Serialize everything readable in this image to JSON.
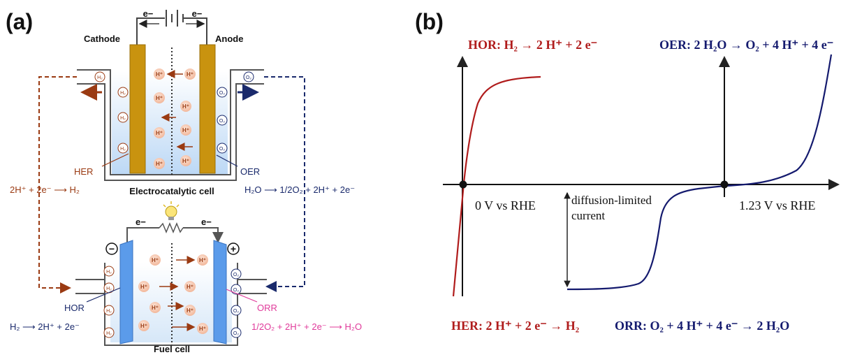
{
  "panel_a": {
    "label": "(a)",
    "electrolyzer": {
      "electron_left": "e−",
      "electron_right": "e−",
      "cathode_label": "Cathode",
      "anode_label": "Anode",
      "h2_mol": "H₂",
      "o2_mol": "O₂",
      "proton": "H⁺",
      "her_label": "HER",
      "oer_label": "OER",
      "title": "Electrocatalytic cell",
      "her_eq": "2H⁺ + 2e⁻ ⟶ H₂",
      "oer_eq": "H₂O ⟶ 1/2O₂ + 2H⁺ + 2e⁻"
    },
    "fuel_cell": {
      "electron_left": "e−",
      "electron_right": "e−",
      "minus_sign": "−",
      "plus_sign": "+",
      "hor_label": "HOR",
      "orr_label": "ORR",
      "title": "Fuel cell",
      "hor_eq": "H₂ ⟶ 2H⁺ + 2e⁻",
      "orr_eq": "1/2O₂ + 2H⁺ + 2e⁻ ⟶ H₂O"
    },
    "colors": {
      "her": "#9a3a12",
      "oer": "#1a2a6c",
      "orr": "#e03a9a",
      "electrode_gold": "#c9930f",
      "electrode_blue": "#5b9bea"
    }
  },
  "panel_b": {
    "label": "(b)",
    "hor_eq": "HOR: H₂ → 2 H⁺ + 2 e⁻",
    "oer_eq": "OER: 2 H₂O → O₂ + 4 H⁺ + 4 e⁻",
    "her_eq": "HER: 2 H⁺ + 2 e⁻ → H₂",
    "orr_eq": "ORR: O₂ + 4 H⁺ + 4 e⁻ → 2 H₂O",
    "zero_label": "0 V vs RHE",
    "e123_label": "1.23 V vs RHE",
    "diffusion_label_1": "diffusion-limited",
    "diffusion_label_2": "current",
    "colors": {
      "red_curve": "#b01c1c",
      "navy_curve": "#141a6e"
    }
  }
}
